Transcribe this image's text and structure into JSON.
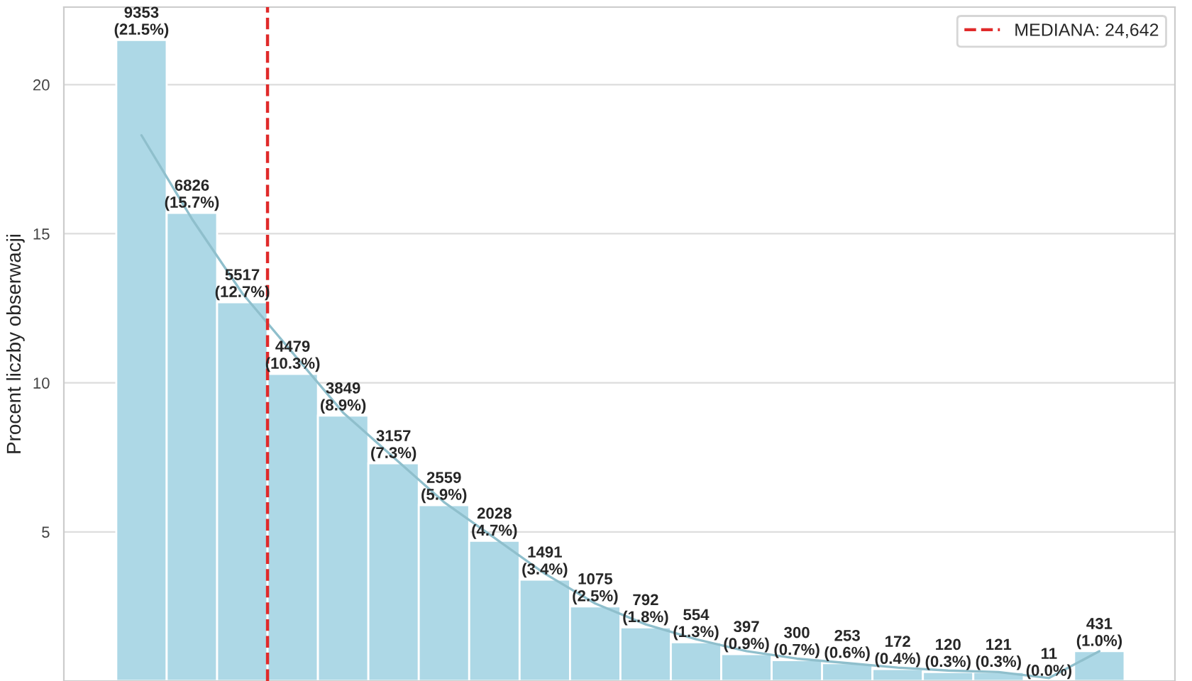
{
  "chart_data": {
    "type": "bar",
    "ylabel": "Procent liczby obserwacji",
    "categories": [
      null,
      null,
      null,
      null,
      null,
      null,
      null,
      null,
      null,
      null,
      null,
      null,
      null,
      null,
      null,
      null,
      null,
      null,
      null,
      null
    ],
    "series": [
      {
        "color": "#add8e6",
        "values": [
          21.5,
          15.7,
          12.7,
          10.3,
          8.9,
          7.3,
          5.9,
          4.7,
          3.4,
          2.5,
          1.8,
          1.3,
          0.9,
          0.7,
          0.6,
          0.4,
          0.3,
          0.3,
          0.0,
          1.0
        ],
        "value_labels": [
          "9353\n(21.5%)",
          "6826\n(15.7%)",
          "5517\n(12.7%)",
          "4479\n(10.3%)",
          "3849\n(8.9%)",
          "3157\n(7.3%)",
          "2559\n(5.9%)",
          "2028\n(4.7%)",
          "1491\n(3.4%)",
          "1075\n(2.5%)",
          "792\n(1.8%)",
          "554\n(1.3%)",
          "397\n(0.9%)",
          "300\n(0.7%)",
          "253\n(0.6%)",
          "172\n(0.4%)",
          "120\n(0.3%)",
          "121\n(0.3%)",
          "11\n(0.0%)",
          "431\n(1.0%)"
        ]
      },
      {
        "type": "line",
        "color": "#8fbfcc",
        "values": [
          18.3,
          15.5,
          13.0,
          11.0,
          9.0,
          7.5,
          6.0,
          4.8,
          3.6,
          2.6,
          1.9,
          1.4,
          1.0,
          0.75,
          0.6,
          0.45,
          0.35,
          0.3,
          0.1,
          1.0
        ]
      }
    ],
    "annotations": [
      "MEDIANA: 24,642"
    ],
    "ylim": [
      0,
      22.6
    ],
    "yticks": [
      5,
      10,
      15,
      20
    ],
    "grid": "y",
    "tick_labels": "y"
  }
}
